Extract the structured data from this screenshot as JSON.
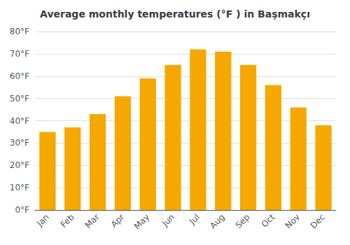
{
  "chart_data": {
    "type": "bar",
    "title": "Average monthly temperatures (°F ) in Başmakçı",
    "categories": [
      "Jan",
      "Feb",
      "Mar",
      "Apr",
      "May",
      "Jun",
      "Jul",
      "Aug",
      "Sep",
      "Oct",
      "Nov",
      "Dec"
    ],
    "values": [
      35,
      37,
      43,
      51,
      59,
      65,
      72,
      71,
      65,
      56,
      46,
      38
    ],
    "color": "#F5A800",
    "ylim": [
      0,
      80
    ],
    "yticks": [
      {
        "value": 0,
        "label": "0°F"
      },
      {
        "value": 10,
        "label": "10°F"
      },
      {
        "value": 20,
        "label": "20°F"
      },
      {
        "value": 30,
        "label": "30°F"
      },
      {
        "value": 40,
        "label": "40°F"
      },
      {
        "value": 50,
        "label": "50°F"
      },
      {
        "value": 60,
        "label": "60°F"
      },
      {
        "value": 70,
        "label": "70°F"
      },
      {
        "value": 80,
        "label": "80°F"
      }
    ],
    "grid": true
  }
}
